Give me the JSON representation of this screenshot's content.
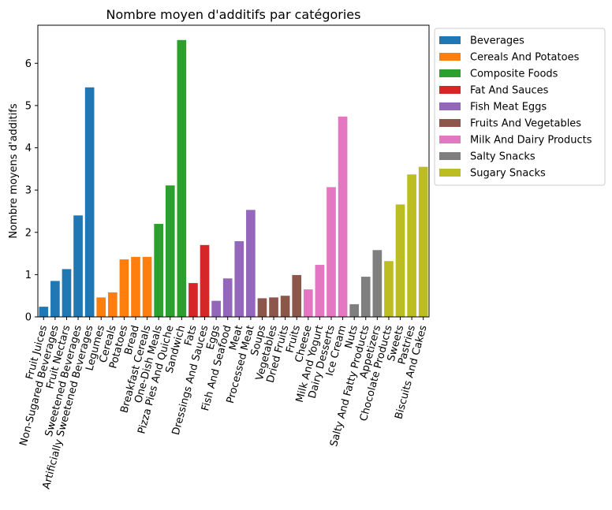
{
  "chart_data": {
    "type": "bar",
    "title": "Nombre moyen d'additifs par catégories",
    "xlabel": "",
    "ylabel": "Nombre moyens d'additifs",
    "ylim": [
      0,
      6.9
    ],
    "yticks": [
      0,
      1,
      2,
      3,
      4,
      5,
      6
    ],
    "grid": false,
    "legend_position": "outside-top-right",
    "groups": [
      {
        "name": "Beverages",
        "color": "#1f77b4"
      },
      {
        "name": "Cereals And Potatoes",
        "color": "#ff7f0e"
      },
      {
        "name": "Composite Foods",
        "color": "#2ca02c"
      },
      {
        "name": "Fat And Sauces",
        "color": "#d62728"
      },
      {
        "name": "Fish Meat Eggs",
        "color": "#9467bd"
      },
      {
        "name": "Fruits And Vegetables",
        "color": "#8c564b"
      },
      {
        "name": "Milk And Dairy Products",
        "color": "#e377c2"
      },
      {
        "name": "Salty Snacks",
        "color": "#7f7f7f"
      },
      {
        "name": "Sugary Snacks",
        "color": "#bcbd22"
      }
    ],
    "categories": [
      "Fruit Juices",
      "Non-Sugared Beverages",
      "Fruit Nectars",
      "Sweetened Beverages",
      "Artificially Sweetened Beverages",
      "Legumes",
      "Cereals",
      "Potatoes",
      "Bread",
      "Breakfast Cereals",
      "One-Dish Meals",
      "Pizza Pies And Quiche",
      "Sandwich",
      "Fats",
      "Dressings And Sauces",
      "Eggs",
      "Fish And Seafood",
      "Meat",
      "Processed Meat",
      "Soups",
      "Vegetables",
      "Dried Fruits",
      "Fruits",
      "Cheese",
      "Milk And Yogurt",
      "Dairy Desserts",
      "Ice Cream",
      "Nuts",
      "Salty And Fatty Products",
      "Appetizers",
      "Chocolate Products",
      "Sweets",
      "Pastries",
      "Biscuits And Cakes"
    ],
    "values": [
      0.24,
      0.85,
      1.13,
      2.4,
      5.43,
      0.46,
      0.58,
      1.36,
      1.42,
      1.42,
      2.2,
      3.11,
      6.55,
      0.8,
      1.7,
      0.38,
      0.91,
      1.79,
      2.53,
      0.44,
      0.46,
      0.5,
      0.99,
      0.65,
      1.23,
      3.07,
      4.74,
      0.3,
      0.95,
      1.58,
      1.32,
      2.66,
      3.37,
      3.55
    ],
    "category_group": [
      0,
      0,
      0,
      0,
      0,
      1,
      1,
      1,
      1,
      1,
      2,
      2,
      2,
      3,
      3,
      4,
      4,
      4,
      4,
      5,
      5,
      5,
      5,
      6,
      6,
      6,
      6,
      7,
      7,
      7,
      8,
      8,
      8,
      8
    ]
  }
}
